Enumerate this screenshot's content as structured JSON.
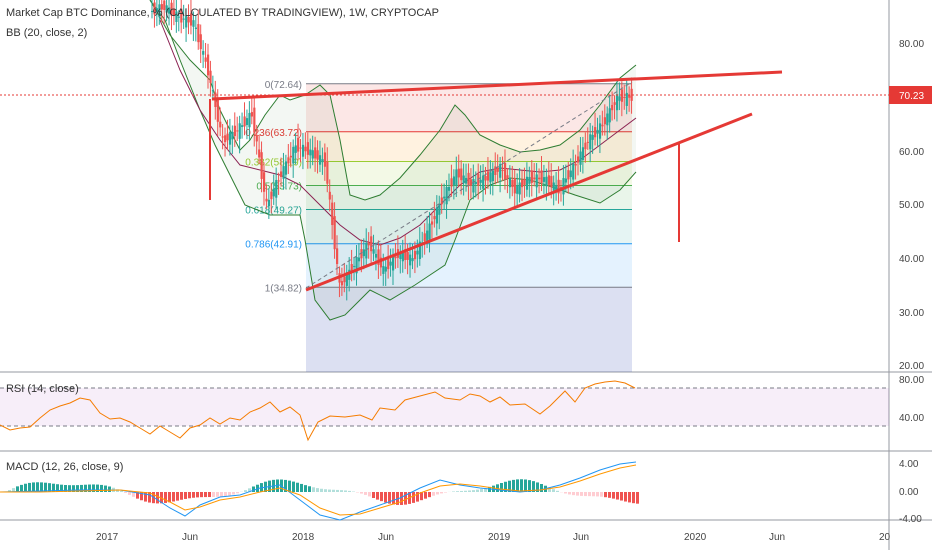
{
  "header": {
    "title": "Market Cap BTC Dominance, % (CALCULATED BY TRADINGVIEW), 1W, CRYPTOCAP",
    "indicator": "BB (20, close, 2)"
  },
  "price_axis": {
    "ticks": [
      "80.00",
      "70.00",
      "60.00",
      "50.00",
      "40.00",
      "30.00",
      "20.00"
    ],
    "current_label": "70.23",
    "current_color": "#e53935"
  },
  "time_axis": {
    "ticks": [
      "2017",
      "Jun",
      "2018",
      "Jun",
      "2019",
      "Jun",
      "2020",
      "Jun",
      "20"
    ]
  },
  "fib_levels": [
    {
      "label": "0(72.64)",
      "value": 72.64,
      "color": "#787b86"
    },
    {
      "label": "0.236(63.72)",
      "value": 63.72,
      "color": "#e53935"
    },
    {
      "label": "0.382(58.19)",
      "value": 58.19,
      "color": "#9acd32"
    },
    {
      "label": "0.5(53.73)",
      "value": 53.73,
      "color": "#4caf50"
    },
    {
      "label": "0.618(49.27)",
      "value": 49.27,
      "color": "#26a69a"
    },
    {
      "label": "0.786(42.91)",
      "value": 42.91,
      "color": "#2196f3"
    },
    {
      "label": "1(34.82)",
      "value": 34.82,
      "color": "#787b86"
    }
  ],
  "rsi": {
    "title": "RSI (14, close)",
    "ticks": [
      "80.00",
      "40.00"
    ]
  },
  "macd": {
    "title": "MACD (12, 26, close, 9)",
    "ticks": [
      "4.00",
      "0.00",
      "-4.00"
    ]
  },
  "colors": {
    "up": "#26a69a",
    "down": "#ef5350",
    "trend": "#e53935",
    "bb": "#2e7d32",
    "basis": "#8b2252",
    "rsi": "#f57c00",
    "macd": "#2196f3",
    "signal": "#ff9800"
  },
  "chart_data": {
    "type": "line",
    "title": "Market Cap BTC Dominance, % (CALCULATED BY TRADINGVIEW), 1W, CRYPTOCAP",
    "series": [
      {
        "name": "BTC Dominance",
        "x": [
          "2016-12",
          "2017-01",
          "2017-02",
          "2017-03",
          "2017-04",
          "2017-05",
          "2017-06",
          "2017-07",
          "2017-08",
          "2017-09",
          "2017-10",
          "2017-11",
          "2017-12",
          "2018-01",
          "2018-02",
          "2018-03",
          "2018-04",
          "2018-05",
          "2018-06",
          "2018-07",
          "2018-08",
          "2018-09",
          "2018-10",
          "2018-11",
          "2018-12",
          "2019-01",
          "2019-02",
          "2019-03",
          "2019-04",
          "2019-05",
          "2019-06",
          "2019-07",
          "2019-08",
          "2019-09"
        ],
        "values": [
          86,
          87,
          85,
          84,
          75,
          62,
          64,
          67,
          50,
          56,
          61,
          60,
          58,
          35,
          39,
          43,
          38,
          41,
          40,
          45,
          51,
          56,
          54,
          55,
          57,
          53,
          55,
          55,
          53,
          57,
          62,
          65,
          70,
          70.23
        ]
      }
    ],
    "xlabel": "",
    "ylabel": "",
    "ylim": [
      20,
      86
    ],
    "log_scale": false,
    "grid": false,
    "legend": "none",
    "fibonacci": [
      72.64,
      63.72,
      58.19,
      53.73,
      49.27,
      42.91,
      34.82
    ],
    "current_value": 70.23
  }
}
